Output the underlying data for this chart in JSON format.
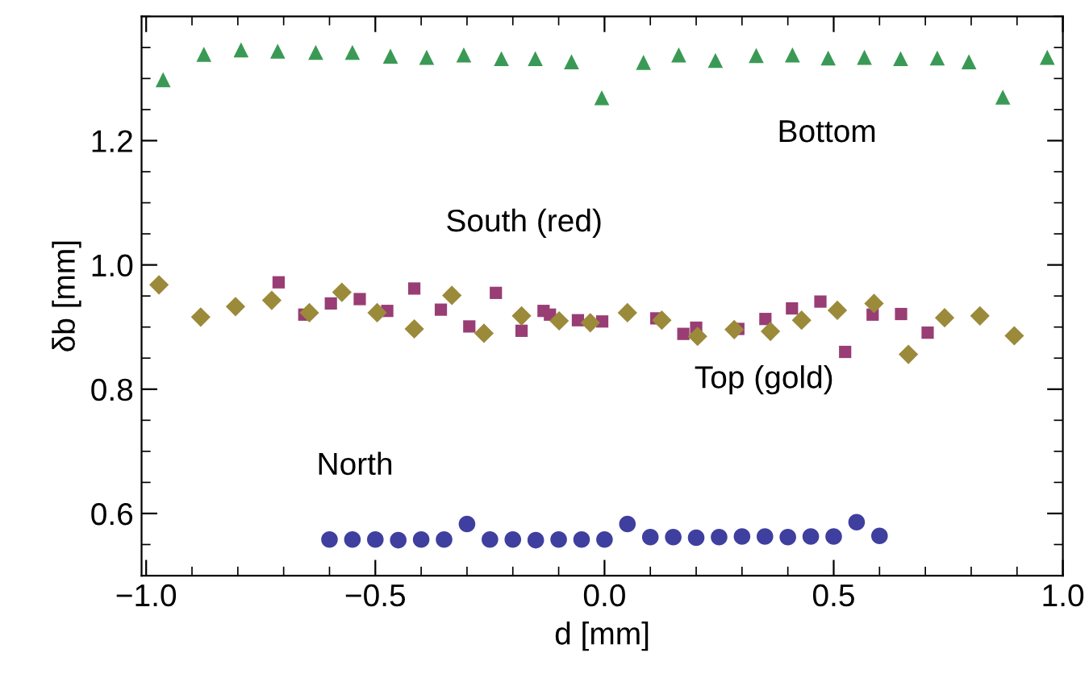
{
  "chart_data": {
    "type": "scatter",
    "xlabel": "d [mm]",
    "ylabel": "δb [mm]",
    "xlim": [
      -1.01,
      1.0
    ],
    "ylim": [
      0.5,
      1.4
    ],
    "xticks": [
      {
        "value": -1.0,
        "label": "−1.0"
      },
      {
        "value": -0.5,
        "label": "−0.5"
      },
      {
        "value": 0.0,
        "label": "0.0"
      },
      {
        "value": 0.5,
        "label": "0.5"
      },
      {
        "value": 1.0,
        "label": "1.0"
      }
    ],
    "yticks": [
      {
        "value": 0.6,
        "label": "0.6"
      },
      {
        "value": 0.8,
        "label": "0.8"
      },
      {
        "value": 1.0,
        "label": "1.0"
      },
      {
        "value": 1.2,
        "label": "1.2"
      }
    ],
    "grid": false,
    "series": [
      {
        "name": "Bottom",
        "color": "#3a9a55",
        "marker": "triangle",
        "x": [
          -0.963,
          -0.874,
          -0.793,
          -0.713,
          -0.63,
          -0.55,
          -0.467,
          -0.388,
          -0.307,
          -0.225,
          -0.151,
          -0.072,
          -0.006,
          0.085,
          0.162,
          0.242,
          0.331,
          0.41,
          0.488,
          0.567,
          0.646,
          0.726,
          0.795,
          0.869,
          0.966
        ],
        "values": [
          1.298,
          1.339,
          1.346,
          1.344,
          1.342,
          1.342,
          1.336,
          1.334,
          1.338,
          1.332,
          1.332,
          1.327,
          1.269,
          1.326,
          1.338,
          1.329,
          1.337,
          1.338,
          1.333,
          1.334,
          1.332,
          1.333,
          1.327,
          1.27,
          1.334
        ]
      },
      {
        "name": "South (red)",
        "color": "#993d75",
        "marker": "square",
        "x": [
          -0.711,
          -0.655,
          -0.597,
          -0.534,
          -0.474,
          -0.415,
          -0.357,
          -0.295,
          -0.237,
          -0.181,
          -0.133,
          -0.119,
          -0.058,
          -0.005,
          0.113,
          0.172,
          0.2,
          0.292,
          0.351,
          0.409,
          0.471,
          0.525,
          0.585,
          0.647,
          0.705
        ],
        "values": [
          0.972,
          0.92,
          0.938,
          0.945,
          0.926,
          0.962,
          0.928,
          0.901,
          0.955,
          0.894,
          0.926,
          0.92,
          0.911,
          0.909,
          0.914,
          0.889,
          0.899,
          0.897,
          0.913,
          0.93,
          0.941,
          0.86,
          0.92,
          0.921,
          0.891
        ]
      },
      {
        "name": "Top (gold)",
        "color": "#9b8a3a",
        "marker": "diamond",
        "x": [
          -0.972,
          -0.881,
          -0.805,
          -0.726,
          -0.644,
          -0.573,
          -0.496,
          -0.415,
          -0.333,
          -0.263,
          -0.181,
          -0.099,
          -0.031,
          0.05,
          0.125,
          0.203,
          0.283,
          0.362,
          0.43,
          0.508,
          0.588,
          0.663,
          0.742,
          0.819,
          0.894
        ],
        "values": [
          0.968,
          0.916,
          0.933,
          0.943,
          0.923,
          0.956,
          0.923,
          0.897,
          0.951,
          0.89,
          0.918,
          0.91,
          0.907,
          0.923,
          0.911,
          0.885,
          0.896,
          0.893,
          0.911,
          0.927,
          0.938,
          0.856,
          0.915,
          0.918,
          0.886
        ]
      },
      {
        "name": "North",
        "color": "#3f3f9f",
        "marker": "circle",
        "x": [
          -0.6,
          -0.55,
          -0.5,
          -0.45,
          -0.4,
          -0.35,
          -0.3,
          -0.25,
          -0.2,
          -0.15,
          -0.1,
          -0.05,
          0.0,
          0.05,
          0.1,
          0.15,
          0.2,
          0.25,
          0.3,
          0.35,
          0.4,
          0.45,
          0.5,
          0.55,
          0.6
        ],
        "values": [
          0.558,
          0.558,
          0.558,
          0.557,
          0.558,
          0.558,
          0.583,
          0.558,
          0.558,
          0.557,
          0.558,
          0.558,
          0.558,
          0.583,
          0.562,
          0.562,
          0.561,
          0.562,
          0.563,
          0.563,
          0.562,
          0.563,
          0.563,
          0.586,
          0.564
        ]
      }
    ]
  }
}
